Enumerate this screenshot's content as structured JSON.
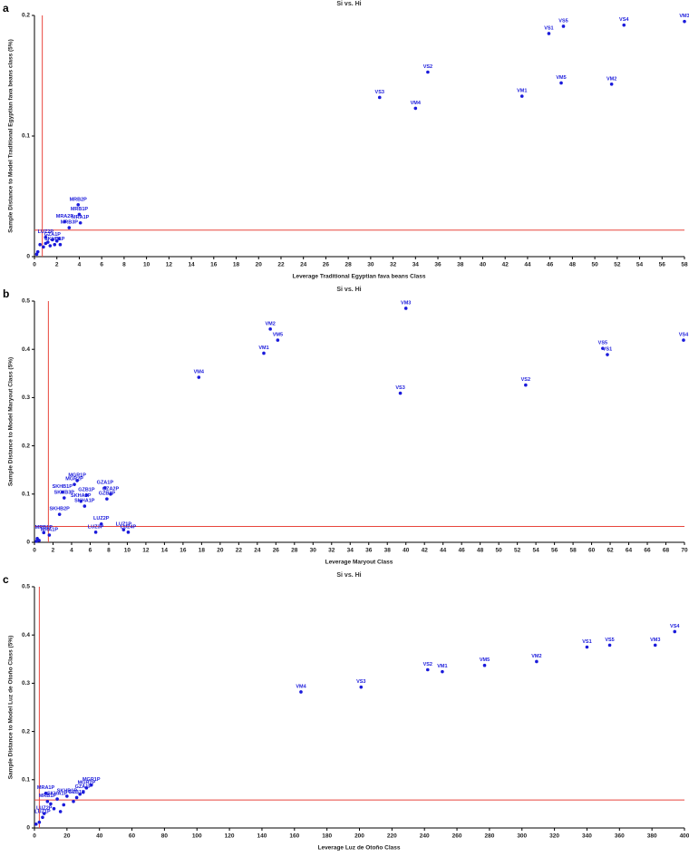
{
  "chart_data": [
    {
      "type": "scatter",
      "panel": "a",
      "title": "Si vs. Hi",
      "x_label": "Leverage  Traditional Egyptian fava beans Class",
      "y_label": "Sample Distance to Model  Traditional Egyptian fava beans class (5%)",
      "color": "#1a1adb",
      "threshold_color": "#e8453c",
      "threshold_x": 0.7,
      "threshold_y": 0.022,
      "xlim": [
        0,
        58
      ],
      "ylim": [
        0,
        0.2
      ],
      "xticks": [
        0,
        2,
        4,
        6,
        8,
        10,
        12,
        14,
        16,
        18,
        20,
        22,
        24,
        26,
        28,
        30,
        32,
        34,
        36,
        38,
        40,
        42,
        44,
        46,
        48,
        50,
        52,
        54,
        56,
        58
      ],
      "yticks": [
        0,
        0.1,
        0.2
      ],
      "point_labels": [
        "VM3",
        "VS4",
        "VS5",
        "VS1",
        "VS2",
        "VM5",
        "VM2",
        "VM1",
        "VS3",
        "VM4",
        "MRB2P",
        "MRB1P",
        "MRA1P",
        "MRA2P",
        "MRB3P",
        "LUZ2P",
        null,
        null,
        "GZA1P",
        null,
        null,
        null,
        "SKHB1P",
        null,
        null,
        null,
        null,
        null
      ],
      "x": [
        58,
        52.6,
        47.2,
        45.9,
        35.1,
        47.0,
        51.5,
        43.5,
        30.8,
        34.0,
        3.9,
        4.0,
        4.1,
        2.7,
        3.1,
        1.0,
        0.5,
        1.2,
        1.6,
        2.0,
        0.3,
        0.8,
        1.8,
        1.4,
        0.2,
        2.2,
        1.0,
        2.3
      ],
      "values": [
        0.195,
        0.192,
        0.191,
        0.185,
        0.153,
        0.144,
        0.143,
        0.133,
        0.132,
        0.123,
        0.043,
        0.035,
        0.028,
        0.029,
        0.024,
        0.016,
        0.01,
        0.012,
        0.014,
        0.013,
        0.004,
        0.008,
        0.01,
        0.009,
        0.002,
        0.015,
        0.011,
        0.01
      ]
    },
    {
      "type": "scatter",
      "panel": "b",
      "title": "Si vs. Hi",
      "x_label": "Leverage Maryout Class",
      "y_label": "Sample Distance to Model  Maryout Class (5%)",
      "color": "#1a1adb",
      "threshold_color": "#e8453c",
      "threshold_x": 1.5,
      "threshold_y": 0.033,
      "xlim": [
        0,
        70
      ],
      "ylim": [
        0,
        0.5
      ],
      "xticks": [
        0,
        2,
        4,
        6,
        8,
        10,
        12,
        14,
        16,
        18,
        20,
        22,
        24,
        26,
        28,
        30,
        32,
        34,
        36,
        38,
        40,
        42,
        44,
        46,
        48,
        50,
        52,
        54,
        56,
        58,
        60,
        62,
        64,
        66,
        68,
        70
      ],
      "yticks": [
        0,
        0.1,
        0.2,
        0.3,
        0.4,
        0.5
      ],
      "point_labels": [
        "VM3",
        "VM2",
        "VM5",
        "VM1",
        "VM4",
        "VS3",
        "VS2",
        "VS5",
        "VS1",
        "VS4",
        "MGR1P",
        "MGR2P",
        "GZA1P",
        "SKHB1P",
        "GZA2P",
        "SKHB3P",
        "GZB1P",
        "SKHA2P",
        "GZB2P",
        "SKHA1P",
        "SKHB2P",
        "LUZ2P",
        "LUZ3P",
        "LUZ1P",
        "LUZ4P",
        "MRB1P",
        "MRA1P",
        null,
        null,
        null
      ],
      "x": [
        40,
        25.4,
        26.2,
        24.7,
        17.7,
        39.4,
        52.9,
        61.2,
        61.7,
        69.9,
        4.6,
        4.3,
        7.6,
        3.0,
        8.2,
        3.2,
        5.6,
        5.0,
        7.8,
        5.4,
        2.7,
        7.2,
        6.6,
        9.6,
        10.1,
        1.0,
        1.6,
        0.3,
        0.5,
        0.2
      ],
      "values": [
        0.485,
        0.442,
        0.419,
        0.392,
        0.342,
        0.309,
        0.326,
        0.402,
        0.389,
        0.419,
        0.128,
        0.12,
        0.113,
        0.104,
        0.1,
        0.092,
        0.098,
        0.085,
        0.09,
        0.075,
        0.058,
        0.038,
        0.021,
        0.026,
        0.021,
        0.02,
        0.015,
        0.008,
        0.004,
        0.002
      ]
    },
    {
      "type": "scatter",
      "panel": "c",
      "title": "Si vs. Hi",
      "x_label": "Leverage Luz de Otoño Class",
      "y_label": "Sample Distance to Model  Luz de Otoño Class (5%)",
      "color": "#1a1adb",
      "threshold_color": "#e8453c",
      "threshold_x": 3,
      "threshold_y": 0.058,
      "xlim": [
        0,
        400
      ],
      "ylim": [
        0,
        0.5
      ],
      "xticks": [
        0,
        20,
        40,
        60,
        80,
        100,
        120,
        140,
        160,
        180,
        200,
        220,
        240,
        260,
        280,
        300,
        320,
        340,
        360,
        380,
        400
      ],
      "yticks": [
        0,
        0.1,
        0.2,
        0.3,
        0.4,
        0.5
      ],
      "point_labels": [
        "VS4",
        "VM3",
        "VS5",
        "VS1",
        "VM2",
        "VM5",
        "VS2",
        "VM1",
        "VS3",
        "VM4",
        "MRA1P",
        "MGR1P",
        "MGR2P",
        "GZA1P",
        "SKHB1P",
        "SKHA1P",
        "MRB1P",
        "GZB1P",
        "LUZ2P",
        "LUZ1P",
        null,
        null,
        null,
        null,
        null,
        null,
        null,
        null
      ],
      "x": [
        394,
        382,
        354,
        340,
        309,
        277,
        242,
        251,
        201,
        164,
        7,
        35,
        32,
        30,
        20,
        14,
        8,
        26,
        6,
        5,
        3,
        1,
        12,
        18,
        24,
        10,
        16,
        28
      ],
      "values": [
        0.407,
        0.379,
        0.379,
        0.375,
        0.345,
        0.337,
        0.328,
        0.324,
        0.292,
        0.282,
        0.072,
        0.089,
        0.083,
        0.074,
        0.066,
        0.06,
        0.055,
        0.063,
        0.03,
        0.022,
        0.012,
        0.008,
        0.04,
        0.048,
        0.055,
        0.05,
        0.034,
        0.07
      ]
    }
  ]
}
